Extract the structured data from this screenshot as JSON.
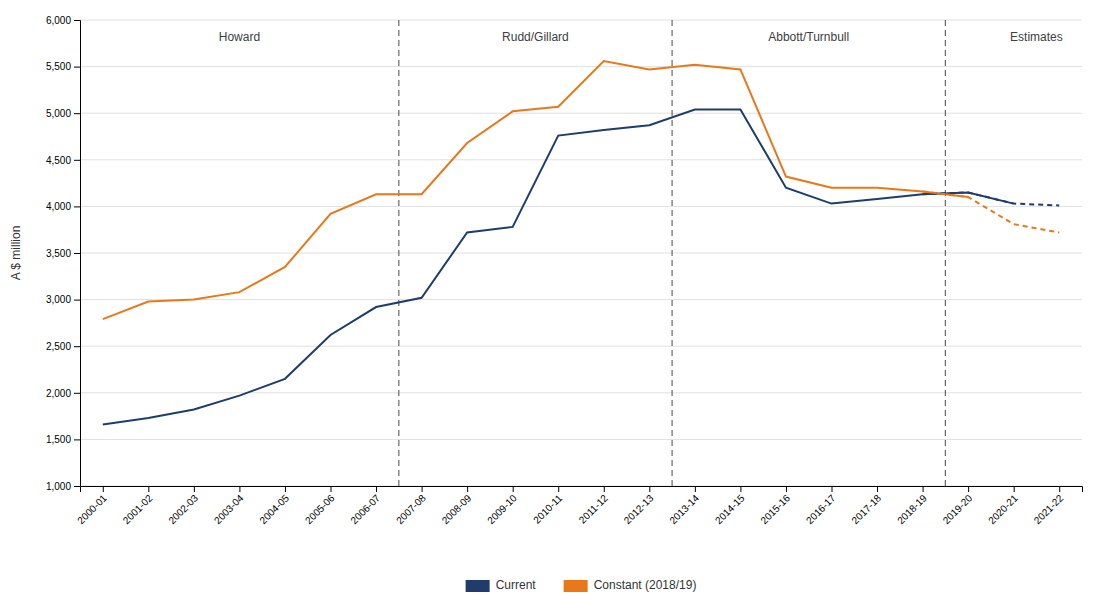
{
  "chart_data": {
    "type": "line",
    "ylabel": "A $ million",
    "categories": [
      "2000-01",
      "2001-02",
      "2002-03",
      "2003-04",
      "2004-05",
      "2005-06",
      "2006-07",
      "2007-08",
      "2008-09",
      "2009-10",
      "2010-11",
      "2011-12",
      "2012-13",
      "2013-14",
      "2014-15",
      "2015-16",
      "2016-17",
      "2017-18",
      "2018-19",
      "2019-20",
      "2020-21",
      "2021-22"
    ],
    "series": [
      {
        "name": "Current",
        "color": "#1F3D6B",
        "line_style": "solid",
        "values": [
          1660,
          1730,
          1820,
          1970,
          2150,
          2620,
          2920,
          3020,
          3720,
          3780,
          4760,
          4820,
          4870,
          5040,
          5040,
          4200,
          4030,
          4080,
          4130,
          4150,
          4030,
          null
        ]
      },
      {
        "name": "Constant (2018/19)",
        "color": "#E8781A",
        "line_style": "solid",
        "values": [
          2790,
          2980,
          3000,
          3080,
          3350,
          3920,
          4130,
          4130,
          4680,
          5020,
          5070,
          5560,
          5470,
          5520,
          5470,
          4320,
          4200,
          4200,
          4160,
          4100,
          null,
          null
        ]
      },
      {
        "color": "#1F3D6B",
        "line_style": "dashed",
        "values": [
          null,
          null,
          null,
          null,
          null,
          null,
          null,
          null,
          null,
          null,
          null,
          null,
          null,
          null,
          null,
          null,
          null,
          null,
          4130,
          4150,
          4030,
          4010
        ]
      },
      {
        "color": "#E8781A",
        "line_style": "dashed",
        "values": [
          null,
          null,
          null,
          null,
          null,
          null,
          null,
          null,
          null,
          null,
          null,
          null,
          null,
          null,
          null,
          null,
          null,
          null,
          4160,
          4100,
          3810,
          3720
        ]
      }
    ],
    "vlines": [
      6.5,
      12.5,
      18.5
    ],
    "annotations": [
      {
        "text": "Howard",
        "x": 3.0,
        "y": 5870
      },
      {
        "text": "Rudd/Gillard",
        "x": 9.5,
        "y": 5870
      },
      {
        "text": "Abbott/Turnbull",
        "x": 15.5,
        "y": 5870
      },
      {
        "text": "Estimates",
        "x": 20.5,
        "y": 5870
      }
    ],
    "ylim": [
      1000,
      6000
    ],
    "yticks": [
      {
        "value": 1000,
        "label": "1,000"
      },
      {
        "value": 1500,
        "label": "1,500"
      },
      {
        "value": 2000,
        "label": "2,000"
      },
      {
        "value": 2500,
        "label": "2,500"
      },
      {
        "value": 3000,
        "label": "3,000"
      },
      {
        "value": 3500,
        "label": "3,500"
      },
      {
        "value": 4000,
        "label": "4,000"
      },
      {
        "value": 4500,
        "label": "4,500"
      },
      {
        "value": 5000,
        "label": "5,000"
      },
      {
        "value": 5500,
        "label": "5,500"
      },
      {
        "value": 6000,
        "label": "6,000"
      }
    ],
    "grid": true,
    "legend": "bottom"
  }
}
